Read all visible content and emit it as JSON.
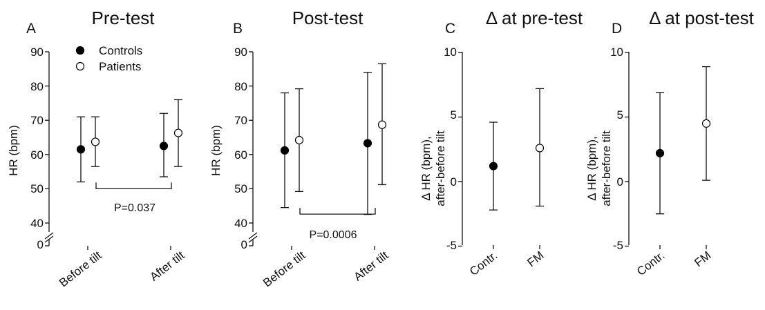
{
  "chart_data": [
    {
      "panel_letter": "A",
      "type": "scatter",
      "title": "Pre-test",
      "ylabel": "HR (bpm)",
      "categories": [
        "Before tilt",
        "After tilt"
      ],
      "y_ticks": [
        "90",
        "80",
        "70",
        "60",
        "50",
        "40",
        "0"
      ],
      "y_tick_values": [
        90,
        80,
        70,
        60,
        50,
        40,
        35
      ],
      "ylim": [
        35,
        90
      ],
      "axis_break": true,
      "legend": {
        "placement": "top-left",
        "entries": [
          "Controls",
          "Patients"
        ]
      },
      "series": [
        {
          "name": "Controls",
          "marker": "filled",
          "values": [
            61.5,
            62.5
          ],
          "err_low": [
            52,
            53.5
          ],
          "err_high": [
            71,
            72
          ]
        },
        {
          "name": "Patients",
          "marker": "open",
          "values": [
            63.7,
            66.3
          ],
          "err_low": [
            56.5,
            56.5
          ],
          "err_high": [
            71,
            76
          ]
        }
      ],
      "annotation": {
        "text": "P=0.037",
        "y_bracket": 50
      }
    },
    {
      "panel_letter": "B",
      "type": "scatter",
      "title": "Post-test",
      "ylabel": "HR (bpm)",
      "categories": [
        "Before tilt",
        "After tilt"
      ],
      "y_ticks": [
        "90",
        "80",
        "70",
        "60",
        "50",
        "40",
        "0"
      ],
      "y_tick_values": [
        90,
        80,
        70,
        60,
        50,
        40,
        35
      ],
      "ylim": [
        35,
        90
      ],
      "axis_break": true,
      "series": [
        {
          "name": "Controls",
          "marker": "filled",
          "values": [
            61.2,
            63.3
          ],
          "err_low": [
            44.5,
            42.5
          ],
          "err_high": [
            78,
            84
          ]
        },
        {
          "name": "Patients",
          "marker": "open",
          "values": [
            64.2,
            68.7
          ],
          "err_low": [
            49.2,
            51.2
          ],
          "err_high": [
            79.2,
            86.5
          ]
        }
      ],
      "annotation": {
        "text": "P=0.0006",
        "y_bracket": 42.6
      }
    },
    {
      "panel_letter": "C",
      "type": "scatter",
      "title": "Δ at pre-test",
      "ylabel_line1": "Δ HR (bpm),",
      "ylabel_line2": "after-before tilt",
      "categories": [
        "Contr.",
        "FM"
      ],
      "y_ticks": [
        "10",
        "5",
        "0",
        "-5"
      ],
      "y_tick_values": [
        10,
        5,
        0,
        -5
      ],
      "ylim": [
        -5,
        10
      ],
      "points": [
        {
          "category": "Contr.",
          "marker": "filled",
          "value": 1.2,
          "err_low": -2.2,
          "err_high": 4.6
        },
        {
          "category": "FM",
          "marker": "open",
          "value": 2.6,
          "err_low": -1.9,
          "err_high": 7.2
        }
      ]
    },
    {
      "panel_letter": "D",
      "type": "scatter",
      "title": "Δ at post-test",
      "ylabel_line1": "Δ HR (bpm),",
      "ylabel_line2": "after-before tilt",
      "categories": [
        "Contr.",
        "FM"
      ],
      "y_ticks": [
        "10",
        "5",
        "0",
        "-5"
      ],
      "y_tick_values": [
        10,
        5,
        0,
        -5
      ],
      "ylim": [
        -5,
        10
      ],
      "points": [
        {
          "category": "Contr.",
          "marker": "filled",
          "value": 2.2,
          "err_low": -2.5,
          "err_high": 6.9
        },
        {
          "category": "FM",
          "marker": "open",
          "value": 4.5,
          "err_low": 0.1,
          "err_high": 8.9
        }
      ]
    }
  ]
}
